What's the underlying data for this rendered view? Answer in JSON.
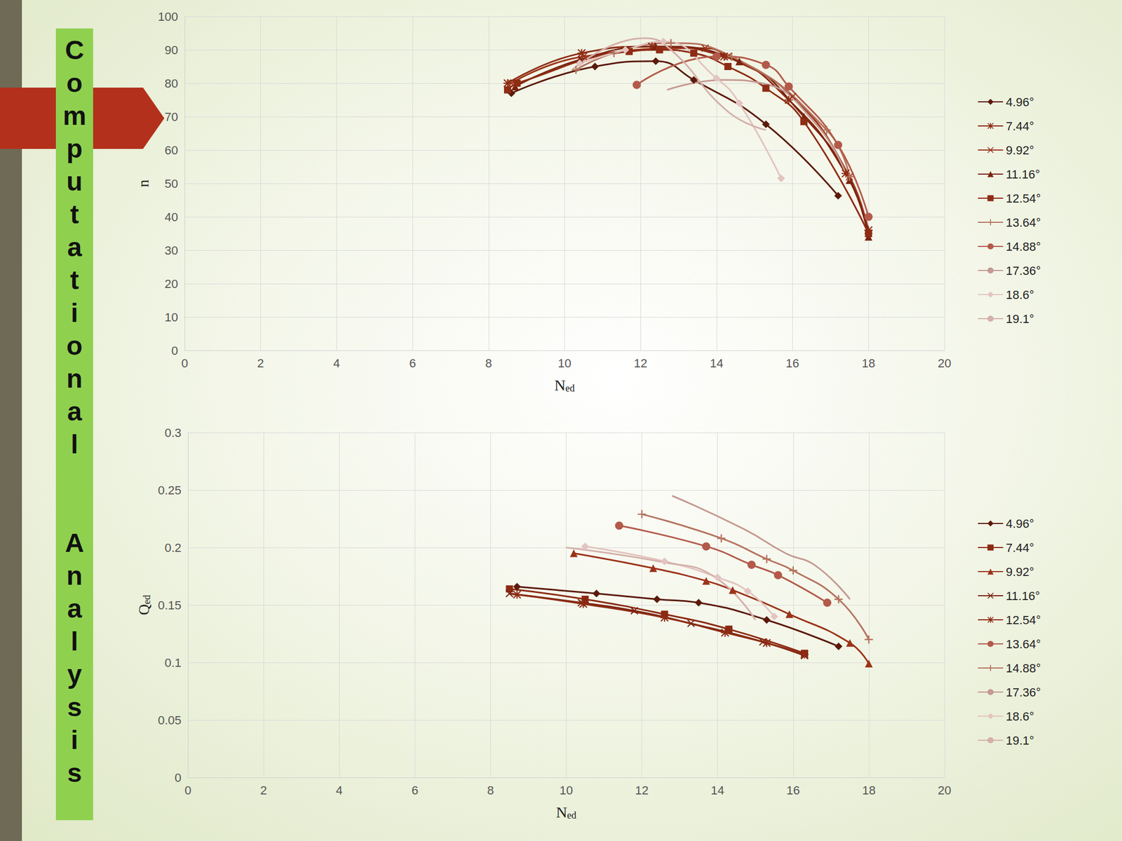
{
  "slide_title": "Computational Analysis",
  "chart_data": [
    {
      "type": "line",
      "x_label": "Ned",
      "y_label": "n",
      "xlim": [
        0,
        20
      ],
      "xticks": [
        0,
        2,
        4,
        6,
        8,
        10,
        12,
        14,
        16,
        18,
        20
      ],
      "ylim": [
        0,
        100
      ],
      "yticks": [
        0,
        10,
        20,
        30,
        40,
        50,
        60,
        70,
        80,
        90,
        100
      ],
      "grid": true,
      "legend": "right",
      "series": [
        {
          "name": "4.96°",
          "color": "#5b1a0a",
          "marker": "diamond",
          "line_style": "solid",
          "x": [
            8.6,
            10.8,
            12.4,
            13.4,
            15.3,
            17.2
          ],
          "values": [
            77,
            85,
            86.6,
            81,
            67.7,
            46.3
          ]
        },
        {
          "name": "7.44°",
          "color": "#8b2a12",
          "marker": "asterisk",
          "line_style": "solid",
          "x": [
            8.5,
            10.45,
            12.3,
            14.2,
            15.9,
            17.4,
            18
          ],
          "values": [
            80,
            89,
            91,
            88,
            75,
            53,
            36
          ]
        },
        {
          "name": "9.92°",
          "color": "#9c3319",
          "marker": "x",
          "line_style": "solid",
          "x": [
            8.6,
            10.5,
            13.7,
            14.3,
            16,
            17.5,
            18
          ],
          "values": [
            80,
            88,
            90.5,
            88,
            76,
            52,
            35
          ]
        },
        {
          "name": "11.16°",
          "color": "#7a2410",
          "marker": "triangle",
          "line_style": "solid",
          "x": [
            8.7,
            10.4,
            12.4,
            14.6,
            16.3,
            17.5,
            18
          ],
          "values": [
            79,
            87,
            91,
            86.5,
            70,
            51,
            34
          ]
        },
        {
          "name": "12.54°",
          "color": "#8e2c14",
          "marker": "square",
          "line_style": "solid",
          "x": [
            8.5,
            8.75,
            11.7,
            12.5,
            13.4,
            14.3,
            15.3,
            16.3,
            18
          ],
          "values": [
            78,
            80,
            89.5,
            90,
            89,
            85,
            78.5,
            68.5,
            35
          ]
        },
        {
          "name": "13.64°",
          "color": "#b5735f",
          "marker": "plus",
          "line_style": "solid",
          "x": [
            10.3,
            11.3,
            12.8,
            14.4,
            16.9,
            17.5
          ],
          "values": [
            84,
            89,
            92,
            88,
            66,
            52
          ]
        },
        {
          "name": "14.88°",
          "color": "#b35a4a",
          "marker": "circle",
          "line_style": "solid",
          "x": [
            11.9,
            14,
            15.3,
            15.9,
            17.2,
            18
          ],
          "values": [
            79.5,
            88,
            85.5,
            79,
            61.5,
            40
          ]
        },
        {
          "name": "17.36°",
          "color": "#c49a92",
          "marker": "none",
          "line_style": "solid",
          "x": [
            12.7,
            14.2,
            15.2,
            16.6,
            17.4
          ],
          "values": [
            78,
            81,
            80,
            68,
            53
          ]
        },
        {
          "name": "18.6°",
          "color": "#e3c4c0",
          "marker": "diamond",
          "line_style": "solid",
          "x": [
            10.4,
            11.6,
            12.6,
            14,
            14.6,
            15.7
          ],
          "values": [
            86,
            90,
            92.5,
            81.5,
            74,
            51.5
          ]
        },
        {
          "name": "19.1°",
          "color": "#d4b0aa",
          "marker": "none",
          "line_style": "solid",
          "x": [
            10.2,
            12.1,
            12.8,
            14.3,
            15.3
          ],
          "values": [
            84,
            93.5,
            90,
            71.5,
            66
          ]
        }
      ]
    },
    {
      "type": "line",
      "x_label": "Ned",
      "y_label": "Qed",
      "xlim": [
        0,
        20
      ],
      "xticks": [
        0,
        2,
        4,
        6,
        8,
        10,
        12,
        14,
        16,
        18,
        20
      ],
      "ylim": [
        0,
        0.3
      ],
      "yticks": [
        0,
        0.05,
        0.1,
        0.15,
        0.2,
        0.25,
        0.3
      ],
      "grid": true,
      "legend": "right",
      "series": [
        {
          "name": "4.96°",
          "color": "#5b1a0a",
          "marker": "diamond",
          "line_style": "solid",
          "x": [
            8.7,
            10.8,
            12.4,
            13.5,
            15.3,
            17.2
          ],
          "values": [
            0.166,
            0.16,
            0.155,
            0.152,
            0.137,
            0.114
          ]
        },
        {
          "name": "7.44°",
          "color": "#8b2a12",
          "marker": "square",
          "line_style": "solid",
          "x": [
            8.5,
            10.5,
            12.6,
            14.3,
            16.3
          ],
          "values": [
            0.164,
            0.155,
            0.142,
            0.129,
            0.108
          ]
        },
        {
          "name": "9.92°",
          "color": "#9c3319",
          "marker": "triangle",
          "line_style": "solid",
          "x": [
            10.2,
            12.3,
            13.7,
            14.4,
            15.9,
            17.5,
            18
          ],
          "values": [
            0.195,
            0.182,
            0.171,
            0.163,
            0.142,
            0.117,
            0.099
          ]
        },
        {
          "name": "11.16°",
          "color": "#7a2410",
          "marker": "x",
          "line_style": "solid",
          "x": [
            8.5,
            10.4,
            11.8,
            13.3,
            15.2,
            16.3
          ],
          "values": [
            0.16,
            0.152,
            0.145,
            0.134,
            0.118,
            0.106
          ]
        },
        {
          "name": "12.54°",
          "color": "#8e2c14",
          "marker": "asterisk",
          "line_style": "solid",
          "x": [
            8.7,
            10.45,
            12.6,
            14.2,
            15.3,
            16.3
          ],
          "values": [
            0.159,
            0.151,
            0.139,
            0.126,
            0.117,
            0.107
          ]
        },
        {
          "name": "13.64°",
          "color": "#b35a4a",
          "marker": "circle",
          "line_style": "solid",
          "x": [
            11.4,
            13.7,
            14.9,
            15.6,
            16.9
          ],
          "values": [
            0.219,
            0.201,
            0.185,
            0.176,
            0.152
          ]
        },
        {
          "name": "14.88°",
          "color": "#b5735f",
          "marker": "plus",
          "line_style": "solid",
          "x": [
            12,
            14.1,
            15.3,
            16,
            17.2,
            18
          ],
          "values": [
            0.229,
            0.208,
            0.19,
            0.18,
            0.155,
            0.12
          ]
        },
        {
          "name": "17.36°",
          "color": "#c49a92",
          "marker": "none",
          "line_style": "solid",
          "x": [
            12.8,
            14.7,
            15.8,
            16.6,
            17.5
          ],
          "values": [
            0.245,
            0.216,
            0.195,
            0.184,
            0.155
          ]
        },
        {
          "name": "18.6°",
          "color": "#e3c4c0",
          "marker": "diamond",
          "line_style": "solid",
          "x": [
            10.5,
            12.6,
            14,
            14.8,
            15.5
          ],
          "values": [
            0.201,
            0.188,
            0.174,
            0.162,
            0.14
          ]
        },
        {
          "name": "19.1°",
          "color": "#d4b0aa",
          "marker": "none",
          "line_style": "solid",
          "x": [
            10,
            12.6,
            13.9,
            15
          ],
          "values": [
            0.2,
            0.187,
            0.175,
            0.137
          ]
        }
      ]
    }
  ]
}
